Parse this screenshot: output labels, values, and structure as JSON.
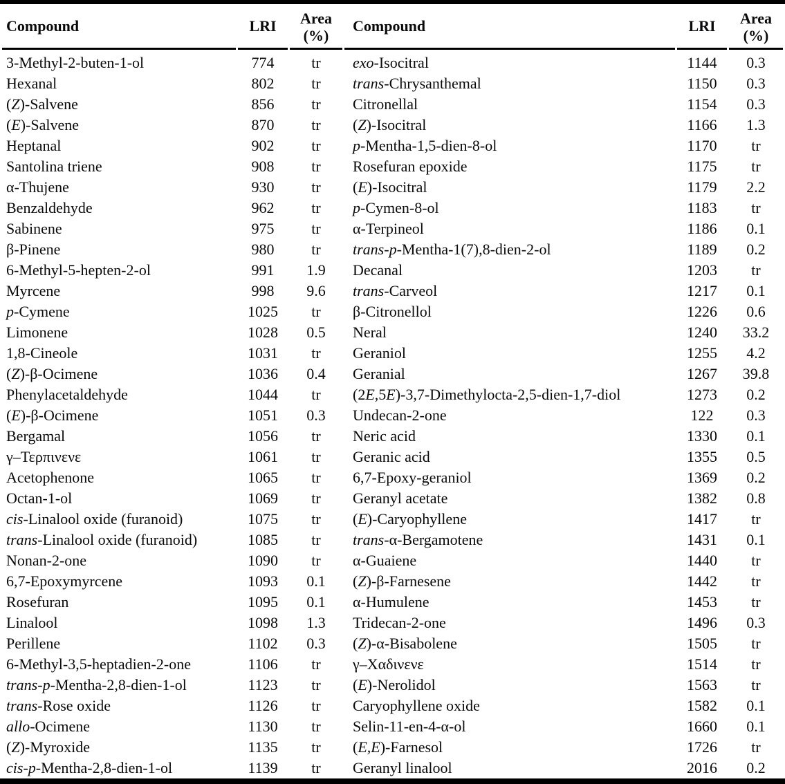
{
  "header": {
    "compound_label": "Compound",
    "lri_label": "LRI",
    "area_label": "Area[br](%)"
  },
  "table": {
    "left_rows": [
      {
        "name": "3-Methyl-2-buten-1-ol",
        "lri": "774",
        "area": "tr"
      },
      {
        "name": "Hexanal",
        "lri": "802",
        "area": "tr"
      },
      {
        "name": "([i]Z[/i])-Salvene",
        "lri": "856",
        "area": "tr"
      },
      {
        "name": "([i]E[/i])-Salvene",
        "lri": "870",
        "area": "tr"
      },
      {
        "name": "Heptanal",
        "lri": "902",
        "area": "tr"
      },
      {
        "name": "Santolina triene",
        "lri": "908",
        "area": "tr"
      },
      {
        "name": "α-Thujene",
        "lri": "930",
        "area": "tr"
      },
      {
        "name": "Benzaldehyde",
        "lri": "962",
        "area": "tr"
      },
      {
        "name": "Sabinene",
        "lri": "975",
        "area": "tr"
      },
      {
        "name": "β-Pinene",
        "lri": "980",
        "area": "tr"
      },
      {
        "name": "6-Methyl-5-hepten-2-ol",
        "lri": "991",
        "area": "1.9"
      },
      {
        "name": "Myrcene",
        "lri": "998",
        "area": "9.6"
      },
      {
        "name": "[i]p[/i]-Cymene",
        "lri": "1025",
        "area": "tr"
      },
      {
        "name": "Limonene",
        "lri": "1028",
        "area": "0.5"
      },
      {
        "name": "1,8-Cineole",
        "lri": "1031",
        "area": "tr"
      },
      {
        "name": "([i]Z[/i])-β-Ocimene",
        "lri": "1036",
        "area": "0.4"
      },
      {
        "name": "Phenylacetaldehyde",
        "lri": "1044",
        "area": "tr"
      },
      {
        "name": "([i]E[/i])-β-Ocimene",
        "lri": "1051",
        "area": "0.3"
      },
      {
        "name": "Bergamal",
        "lri": "1056",
        "area": "tr"
      },
      {
        "name": "γ–Τερπινενε",
        "lri": "1061",
        "area": "tr"
      },
      {
        "name": "Acetophenone",
        "lri": "1065",
        "area": "tr"
      },
      {
        "name": "Octan-1-ol",
        "lri": "1069",
        "area": "tr"
      },
      {
        "name": "[i]cis[/i]-Linalool oxide (furanoid)",
        "lri": "1075",
        "area": "tr"
      },
      {
        "name": "[i]trans[/i]-Linalool oxide (furanoid)",
        "lri": "1085",
        "area": "tr"
      },
      {
        "name": "Nonan-2-one",
        "lri": "1090",
        "area": "tr"
      },
      {
        "name": "6,7-Epoxymyrcene",
        "lri": "1093",
        "area": "0.1"
      },
      {
        "name": "Rosefuran",
        "lri": "1095",
        "area": "0.1"
      },
      {
        "name": "Linalool",
        "lri": "1098",
        "area": "1.3"
      },
      {
        "name": "Perillene",
        "lri": "1102",
        "area": "0.3"
      },
      {
        "name": "6-Methyl-3,5-heptadien-2-one",
        "lri": "1106",
        "area": "tr"
      },
      {
        "name": "[i]trans[/i]-[i]p[/i]-Mentha-2,8-dien-1-ol",
        "lri": "1123",
        "area": "tr"
      },
      {
        "name": "[i]trans[/i]-Rose oxide",
        "lri": "1126",
        "area": "tr"
      },
      {
        "name": "[i]allo[/i]-Ocimene",
        "lri": "1130",
        "area": "tr"
      },
      {
        "name": "([i]Z[/i])-Myroxide",
        "lri": "1135",
        "area": "tr"
      },
      {
        "name": "[i]cis[/i]-[i]p[/i]-Mentha-2,8-dien-1-ol",
        "lri": "1139",
        "area": "tr"
      }
    ],
    "right_rows": [
      {
        "name": "[i]exo[/i]-Isocitral",
        "lri": "1144",
        "area": "0.3"
      },
      {
        "name": "[i]trans[/i]-Chrysanthemal",
        "lri": "1150",
        "area": "0.3"
      },
      {
        "name": "Citronellal",
        "lri": "1154",
        "area": "0.3"
      },
      {
        "name": "([i]Z[/i])-Isocitral",
        "lri": "1166",
        "area": "1.3"
      },
      {
        "name": "[i]p[/i]-Mentha-1,5-dien-8-ol",
        "lri": "1170",
        "area": "tr"
      },
      {
        "name": "Rosefuran epoxide",
        "lri": "1175",
        "area": "tr"
      },
      {
        "name": "([i]E[/i])-Isocitral",
        "lri": "1179",
        "area": "2.2"
      },
      {
        "name": "[i]p[/i]-Cymen-8-ol",
        "lri": "1183",
        "area": "tr"
      },
      {
        "name": "α-Terpineol",
        "lri": "1186",
        "area": "0.1"
      },
      {
        "name": "[i]trans[/i]-[i]p[/i]-Mentha-1(7),8-dien-2-ol",
        "lri": "1189",
        "area": "0.2"
      },
      {
        "name": "Decanal",
        "lri": "1203",
        "area": "tr"
      },
      {
        "name": "[i]trans[/i]-Carveol",
        "lri": "1217",
        "area": "0.1"
      },
      {
        "name": "β-Citronellol",
        "lri": "1226",
        "area": "0.6"
      },
      {
        "name": "Neral",
        "lri": "1240",
        "area": "33.2"
      },
      {
        "name": "Geraniol",
        "lri": "1255",
        "area": "4.2"
      },
      {
        "name": "Geranial",
        "lri": "1267",
        "area": "39.8"
      },
      {
        "name": "(2[i]E[/i],5[i]E[/i])-3,7-Dimethylocta-2,5-dien-1,7-diol",
        "lri": "1273",
        "area": "0.2"
      },
      {
        "name": "Undecan-2-one",
        "lri": "122",
        "area": "0.3"
      },
      {
        "name": "Neric acid",
        "lri": "1330",
        "area": "0.1"
      },
      {
        "name": "Geranic acid",
        "lri": "1355",
        "area": "0.5"
      },
      {
        "name": "6,7-Epoxy-geraniol",
        "lri": "1369",
        "area": "0.2"
      },
      {
        "name": "Geranyl acetate",
        "lri": "1382",
        "area": "0.8"
      },
      {
        "name": "([i]E[/i])-Caryophyllene",
        "lri": "1417",
        "area": "tr"
      },
      {
        "name": "[i]trans[/i]-α-Bergamotene",
        "lri": "1431",
        "area": "0.1"
      },
      {
        "name": "α-Guaiene",
        "lri": "1440",
        "area": "tr"
      },
      {
        "name": "([i]Z[/i])-β-Farnesene",
        "lri": "1442",
        "area": "tr"
      },
      {
        "name": "α-Humulene",
        "lri": "1453",
        "area": "tr"
      },
      {
        "name": "Tridecan-2-one",
        "lri": "1496",
        "area": "0.3"
      },
      {
        "name": "([i]Z[/i])-α-Bisabolene",
        "lri": "1505",
        "area": "tr"
      },
      {
        "name": "γ–Χαδινενε",
        "lri": "1514",
        "area": "tr"
      },
      {
        "name": "([i]E[/i])-Nerolidol",
        "lri": "1563",
        "area": "tr"
      },
      {
        "name": "Caryophyllene oxide",
        "lri": "1582",
        "area": "0.1"
      },
      {
        "name": "Selin-11-en-4-α-ol",
        "lri": "1660",
        "area": "0.1"
      },
      {
        "name": "([i]E,E[/i])-Farnesol",
        "lri": "1726",
        "area": "tr"
      },
      {
        "name": "Geranyl linalool",
        "lri": "2016",
        "area": "0.2"
      }
    ]
  },
  "colors": {
    "text": "#0a0a0c",
    "background": "#ffffff",
    "rule": "#000000"
  }
}
